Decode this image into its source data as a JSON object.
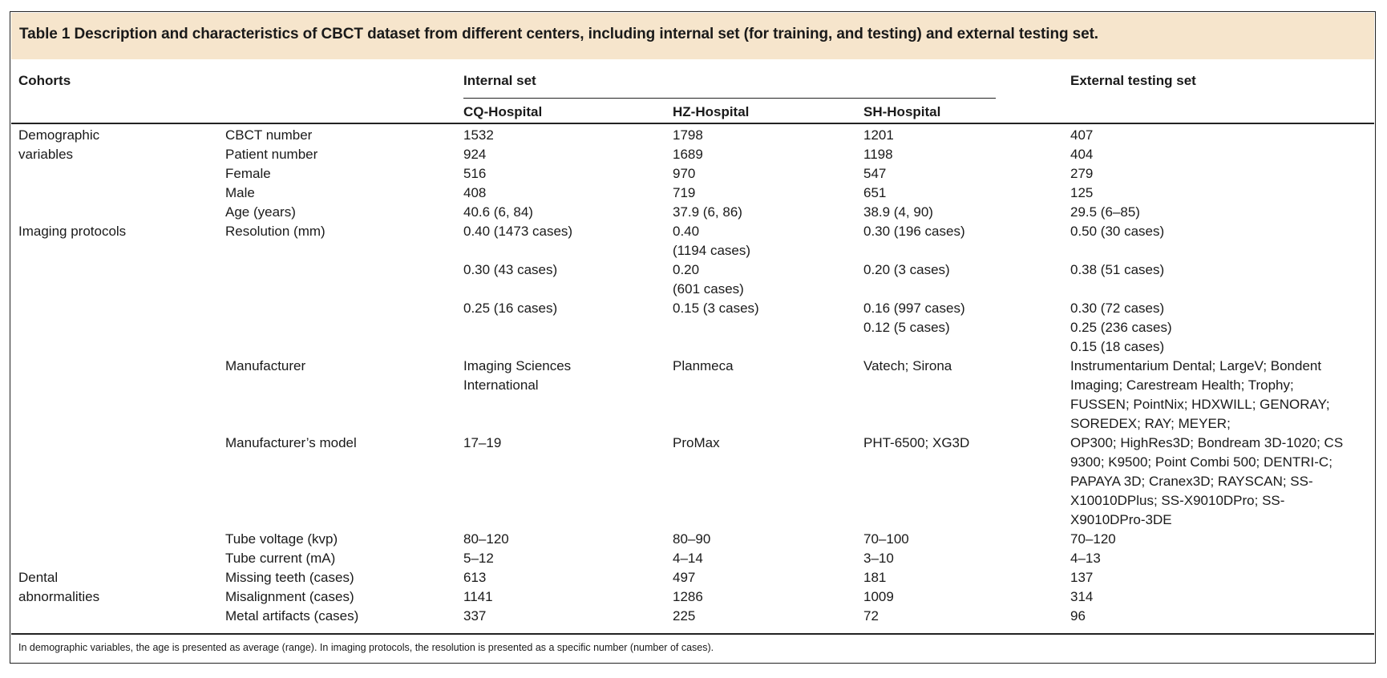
{
  "table": {
    "caption": "Table 1 Description and characteristics of CBCT dataset from different centers, including internal set (for training, and testing) and external testing set.",
    "header": {
      "cohorts": "Cohorts",
      "internal_set": "Internal set",
      "external_set": "External testing set",
      "hospitals": [
        "CQ-Hospital",
        "HZ-Hospital",
        "SH-Hospital"
      ]
    },
    "groups": {
      "demographic": [
        "Demographic",
        "variables"
      ],
      "imaging": "Imaging protocols",
      "dental": [
        "Dental",
        "abnormalities"
      ]
    },
    "rows": {
      "cbct_number": {
        "label": "CBCT number",
        "cq": "1532",
        "hz": "1798",
        "sh": "1201",
        "ext": "407"
      },
      "patient_number": {
        "label": "Patient number",
        "cq": "924",
        "hz": "1689",
        "sh": "1198",
        "ext": "404"
      },
      "female": {
        "label": "Female",
        "cq": "516",
        "hz": "970",
        "sh": "547",
        "ext": "279"
      },
      "male": {
        "label": "Male",
        "cq": "408",
        "hz": "719",
        "sh": "651",
        "ext": "125"
      },
      "age": {
        "label": "Age (years)",
        "cq": "40.6 (6, 84)",
        "hz": "37.9 (6, 86)",
        "sh": "38.9 (4, 90)",
        "ext": "29.5 (6–85)"
      },
      "resolution": {
        "label": "Resolution (mm)",
        "cq": [
          "0.40 (1473 cases)",
          "0.30 (43 cases)",
          "0.25 (16 cases)"
        ],
        "hz": [
          [
            "0.40",
            "(1194 cases)"
          ],
          [
            "0.20",
            "(601 cases)"
          ],
          [
            "0.15 (3 cases)"
          ]
        ],
        "sh": [
          "0.30 (196 cases)",
          "0.20 (3 cases)",
          "0.16 (997 cases)",
          "0.12 (5 cases)"
        ],
        "ext": [
          "0.50 (30 cases)",
          "0.38 (51 cases)",
          "0.30 (72 cases)",
          "0.25 (236 cases)",
          "0.15 (18 cases)"
        ]
      },
      "manufacturer": {
        "label": "Manufacturer",
        "cq": [
          "Imaging Sciences",
          "International"
        ],
        "hz": "Planmeca",
        "sh": "Vatech; Sirona",
        "ext": [
          "Instrumentarium Dental; LargeV; Bondent",
          "Imaging; Carestream Health; Trophy;",
          "FUSSEN; PointNix; HDXWILL; GENORAY;",
          "SOREDEX; RAY; MEYER;"
        ]
      },
      "model": {
        "label": "Manufacturer’s model",
        "cq": "17–19",
        "hz": "ProMax",
        "sh": "PHT-6500; XG3D",
        "ext": [
          "OP300; HighRes3D; Bondream 3D-1020; CS",
          "9300; K9500; Point Combi 500; DENTRI-C;",
          "PAPAYA 3D; Cranex3D; RAYSCAN; SS-",
          "X10010DPlus; SS-X9010DPro; SS-",
          "X9010DPro-3DE"
        ]
      },
      "tube_voltage": {
        "label": "Tube voltage (kvp)",
        "cq": "80–120",
        "hz": "80–90",
        "sh": "70–100",
        "ext": "70–120"
      },
      "tube_current": {
        "label": "Tube current (mA)",
        "cq": "5–12",
        "hz": "4–14",
        "sh": "3–10",
        "ext": "4–13"
      },
      "missing_teeth": {
        "label": "Missing teeth (cases)",
        "cq": "613",
        "hz": "497",
        "sh": "181",
        "ext": "137"
      },
      "misalignment": {
        "label": "Misalignment (cases)",
        "cq": "1141",
        "hz": "1286",
        "sh": "1009",
        "ext": "314"
      },
      "metal": {
        "label": "Metal artifacts (cases)",
        "cq": "337",
        "hz": "225",
        "sh": "72",
        "ext": "96"
      }
    },
    "footnote": "In demographic variables, the age is presented as average (range). In imaging protocols, the resolution is presented as a specific number (number of cases)."
  }
}
